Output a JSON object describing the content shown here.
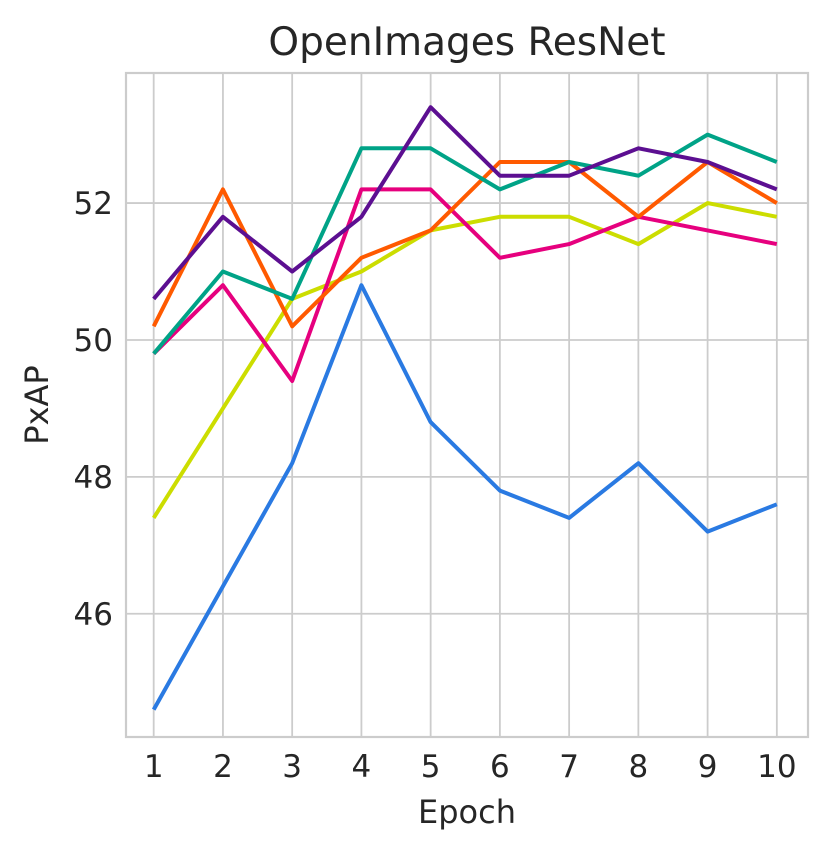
{
  "chart_data": {
    "type": "line",
    "title": "OpenImages ResNet",
    "xlabel": "Epoch",
    "ylabel": "PxAP",
    "x": [
      1,
      2,
      3,
      4,
      5,
      6,
      7,
      8,
      9,
      10
    ],
    "xticks": [
      "1",
      "2",
      "3",
      "4",
      "5",
      "6",
      "7",
      "8",
      "9",
      "10"
    ],
    "yticks": [
      46,
      48,
      50,
      52
    ],
    "ytick_labels": [
      "46",
      "48",
      "50",
      "52"
    ],
    "xlim": [
      0.6,
      10.45
    ],
    "ylim": [
      44.2,
      53.9
    ],
    "grid": true,
    "legend": "none",
    "series": [
      {
        "color": "#2a7ae2",
        "values": [
          44.6,
          46.4,
          48.2,
          50.8,
          48.8,
          47.8,
          47.4,
          48.2,
          47.2,
          47.6
        ]
      },
      {
        "color": "#ccdd00",
        "values": [
          47.4,
          49.0,
          50.6,
          51.0,
          51.6,
          51.8,
          51.8,
          51.4,
          52.0,
          51.8
        ]
      },
      {
        "color": "#e6007e",
        "values": [
          49.8,
          50.8,
          49.4,
          52.2,
          52.2,
          51.2,
          51.4,
          51.8,
          51.6,
          51.4
        ]
      },
      {
        "color": "#ff5a00",
        "values": [
          50.2,
          52.2,
          50.2,
          51.2,
          51.6,
          52.6,
          52.6,
          51.8,
          52.6,
          52.0
        ]
      },
      {
        "color": "#00a387",
        "values": [
          49.8,
          51.0,
          50.6,
          52.8,
          52.8,
          52.2,
          52.6,
          52.4,
          53.0,
          52.6
        ]
      },
      {
        "color": "#5c0f91",
        "values": [
          50.6,
          51.8,
          51.0,
          51.8,
          53.4,
          52.4,
          52.4,
          52.8,
          52.6,
          52.2
        ]
      }
    ]
  }
}
